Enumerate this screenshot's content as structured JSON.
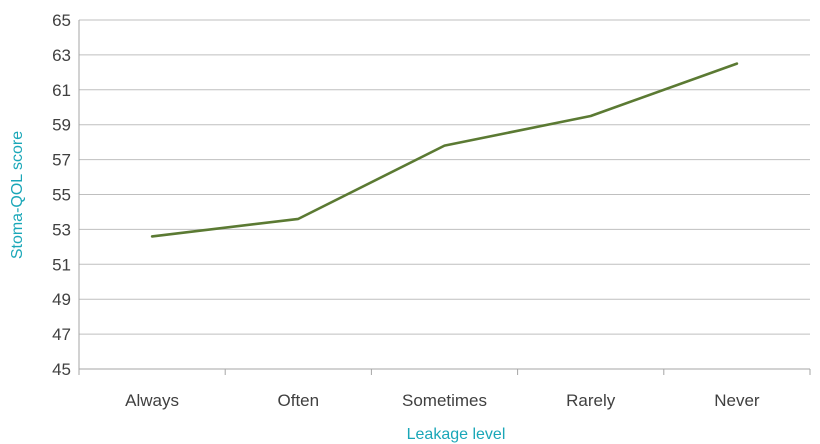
{
  "chart_data": {
    "type": "line",
    "categories": [
      "Always",
      "Often",
      "Sometimes",
      "Rarely",
      "Never"
    ],
    "series": [
      {
        "values": [
          52.6,
          53.6,
          57.8,
          59.5,
          62.5
        ]
      }
    ],
    "xlabel": "Leakage level",
    "ylabel": "Stoma-QOL score",
    "ylim": [
      45,
      65
    ],
    "ytick_step": 2,
    "grid": "horizontal",
    "legend": "none",
    "colors": {
      "line": "#5b7a33",
      "axis_title": "#1aa7b8",
      "gridline": "#bfbfbf",
      "tick_text": "#404040"
    }
  }
}
